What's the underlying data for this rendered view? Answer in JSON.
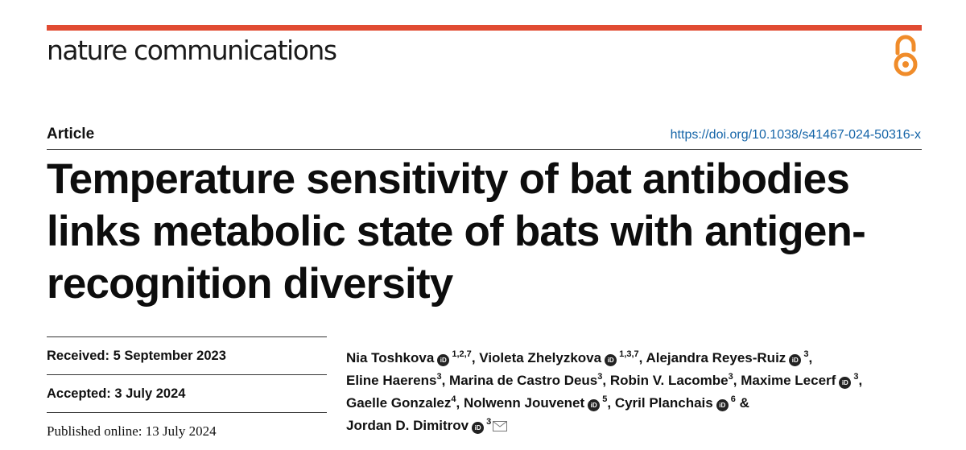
{
  "journal": {
    "name": "nature communications",
    "accent_color": "#e14b32",
    "open_access_icon": "open-access-icon"
  },
  "article": {
    "type": "Article",
    "doi": "https://doi.org/10.1038/s41467-024-50316-x",
    "title_lines": [
      "Temperature sensitivity of bat antibodies",
      "links metabolic state of bats with antigen-",
      "recognition diversity"
    ]
  },
  "dates": {
    "received_label": "Received:",
    "received": "5 September 2023",
    "accepted_label": "Accepted:",
    "accepted": "3 July 2024",
    "published_label": "Published online:",
    "published": "13 July 2024"
  },
  "authors": [
    {
      "name": "Nia Toshkova",
      "orcid": true,
      "aff": "1,2,7",
      "sep": ","
    },
    {
      "name": "Violeta Zhelyzkova",
      "orcid": true,
      "aff": "1,3,7",
      "sep": ","
    },
    {
      "name": "Alejandra Reyes-Ruiz",
      "orcid": true,
      "aff": "3",
      "sep": ","
    },
    {
      "name": "Eline Haerens",
      "orcid": false,
      "aff": "3",
      "sep": ","
    },
    {
      "name": "Marina de Castro Deus",
      "orcid": false,
      "aff": "3",
      "sep": ","
    },
    {
      "name": "Robin V. Lacombe",
      "orcid": false,
      "aff": "3",
      "sep": ","
    },
    {
      "name": "Maxime Lecerf",
      "orcid": true,
      "aff": "3",
      "sep": ","
    },
    {
      "name": "Gaelle Gonzalez",
      "orcid": false,
      "aff": "4",
      "sep": ","
    },
    {
      "name": "Nolwenn Jouvenet",
      "orcid": true,
      "aff": "5",
      "sep": ","
    },
    {
      "name": "Cyril Planchais",
      "orcid": true,
      "aff": "6",
      "sep": " &"
    },
    {
      "name": "Jordan D. Dimitrov",
      "orcid": true,
      "aff": "3",
      "sep": "",
      "corresponding": true
    }
  ],
  "orcid_text": "iD"
}
